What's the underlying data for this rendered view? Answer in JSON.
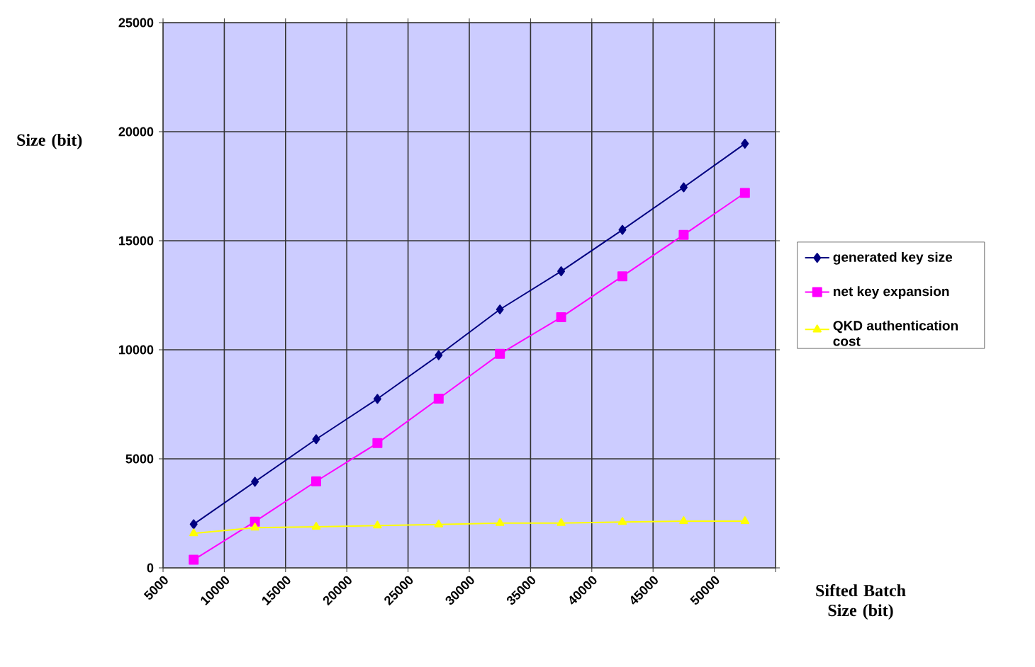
{
  "chart_data": {
    "type": "line",
    "xlabel": "Sifted Batch Size (bit)",
    "ylabel": "Size (bit)",
    "x": [
      7500,
      12500,
      17500,
      22500,
      27500,
      32500,
      37500,
      42500,
      47500,
      52500
    ],
    "xlim": [
      5000,
      55000
    ],
    "xticks": [
      5000,
      10000,
      15000,
      20000,
      25000,
      30000,
      35000,
      40000,
      45000,
      50000,
      {
        "value": 55000,
        "label": null
      }
    ],
    "ylim": [
      0,
      25000
    ],
    "yticks": [
      0,
      5000,
      10000,
      15000,
      20000,
      25000
    ],
    "grid": true,
    "legend": "right",
    "line_style": "solid",
    "series": [
      {
        "name": "generated key size",
        "color": "#000080",
        "marker": "diamond",
        "values": [
          2000,
          3950,
          5900,
          7750,
          9750,
          11850,
          13600,
          15500,
          17450,
          19450
        ]
      },
      {
        "name": "net key expansion",
        "color": "#ff00ff",
        "marker": "square",
        "values": [
          370,
          2120,
          3970,
          5720,
          7760,
          9810,
          11490,
          13370,
          15270,
          17190
        ]
      },
      {
        "name": "QKD authentication cost",
        "color": "#ffff00",
        "marker": "triangle",
        "values": [
          1580,
          1840,
          1880,
          1940,
          1990,
          2050,
          2050,
          2100,
          2140,
          2140
        ]
      }
    ]
  }
}
